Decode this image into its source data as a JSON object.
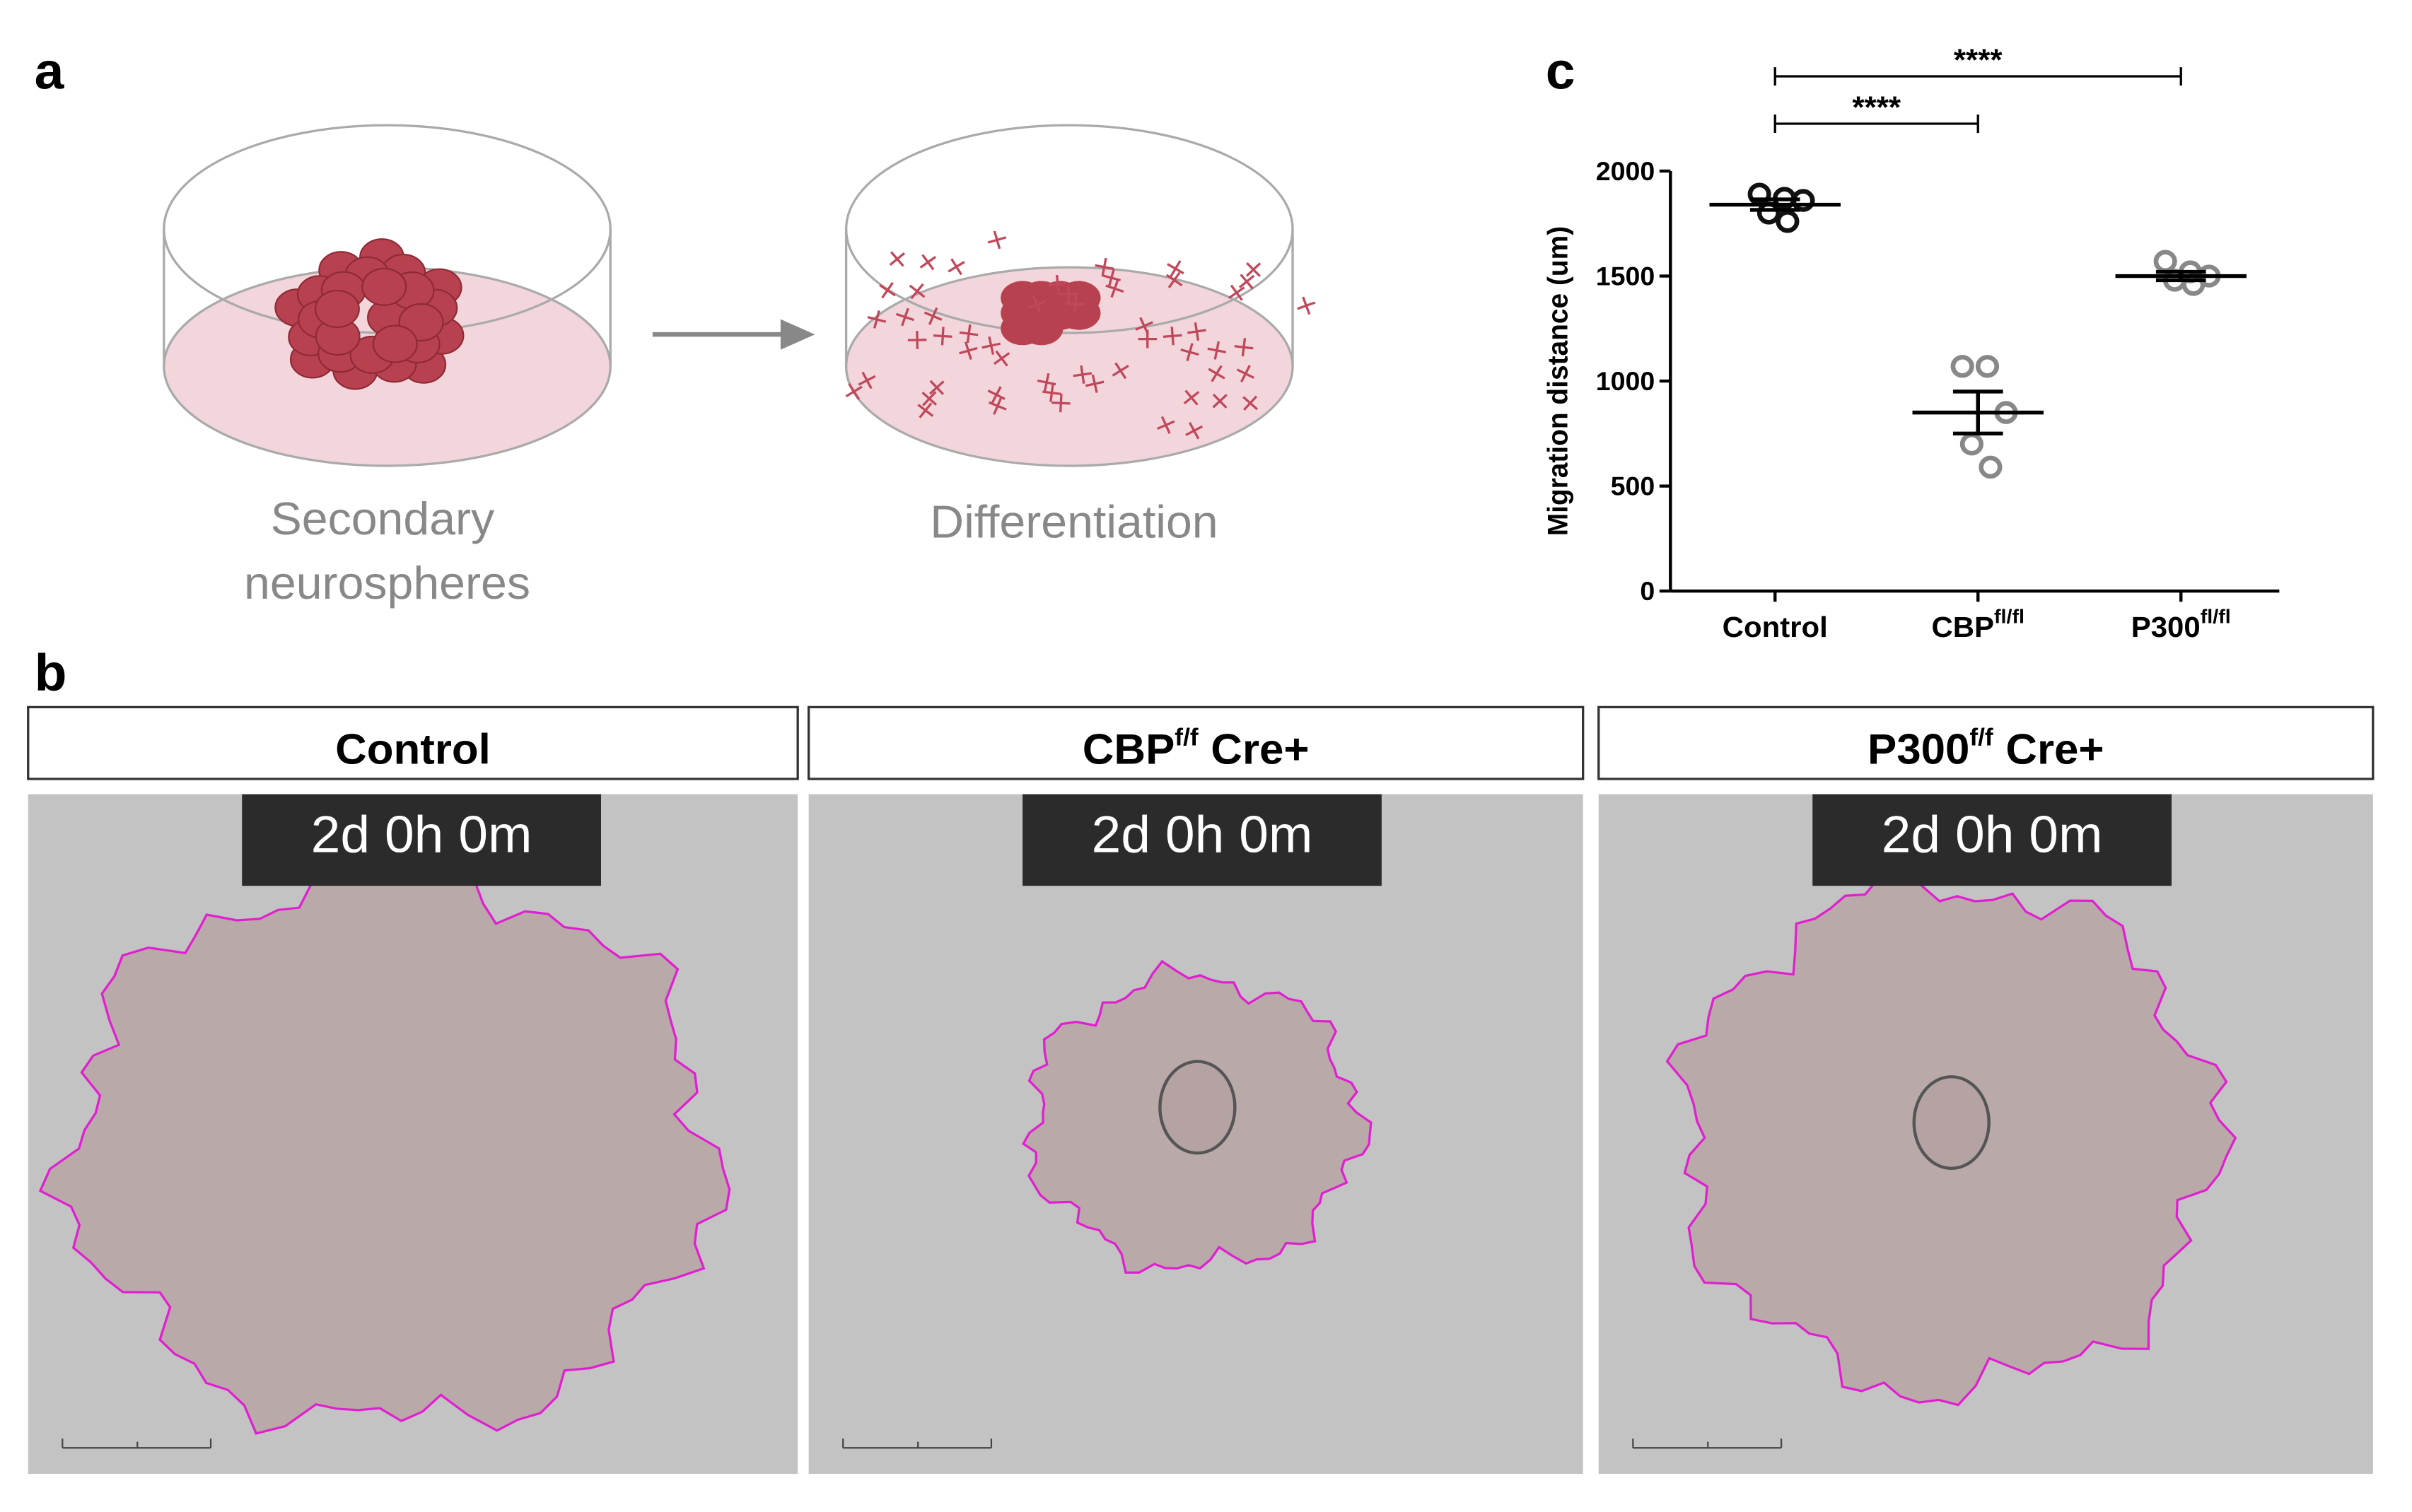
{
  "panel_labels": [
    "a",
    "b",
    "c"
  ],
  "panel_a": {
    "left_caption": [
      "Secondary",
      "neurospheres"
    ],
    "right_caption": "Differentiation"
  },
  "panel_b": {
    "panels": [
      {
        "title": "Control",
        "timestamp": "2d 0h 0m"
      },
      {
        "title": "CBP",
        "title_sup": "f/f",
        "title_suffix": "Cre+",
        "timestamp": "2d 0h 0m"
      },
      {
        "title": "P300",
        "title_sup": "f/f",
        "title_suffix": "Cre+",
        "timestamp": "2d 0h 0m"
      }
    ]
  },
  "chart_data": {
    "type": "dotplot",
    "ylabel": "Migration distance (um)",
    "categories": [
      "Control",
      "CBP",
      "P300"
    ],
    "category_superscripts": [
      null,
      "fl/fl",
      "fl/fl"
    ],
    "colors": [
      "#111111",
      "#888888",
      "#888888"
    ],
    "points": [
      [
        1890,
        1870,
        1860,
        1800,
        1760
      ],
      [
        1070,
        1070,
        850,
        700,
        590
      ],
      [
        1570,
        1520,
        1500,
        1480,
        1460
      ]
    ],
    "means": [
      1840,
      850,
      1500
    ],
    "sems": [
      25,
      100,
      20
    ],
    "ylim": [
      0,
      2000
    ],
    "yticks": [
      0,
      500,
      1000,
      1500,
      2000
    ],
    "significance": [
      {
        "from": 0,
        "to": 1,
        "label": "****"
      },
      {
        "from": 0,
        "to": 2,
        "label": "****"
      }
    ]
  }
}
